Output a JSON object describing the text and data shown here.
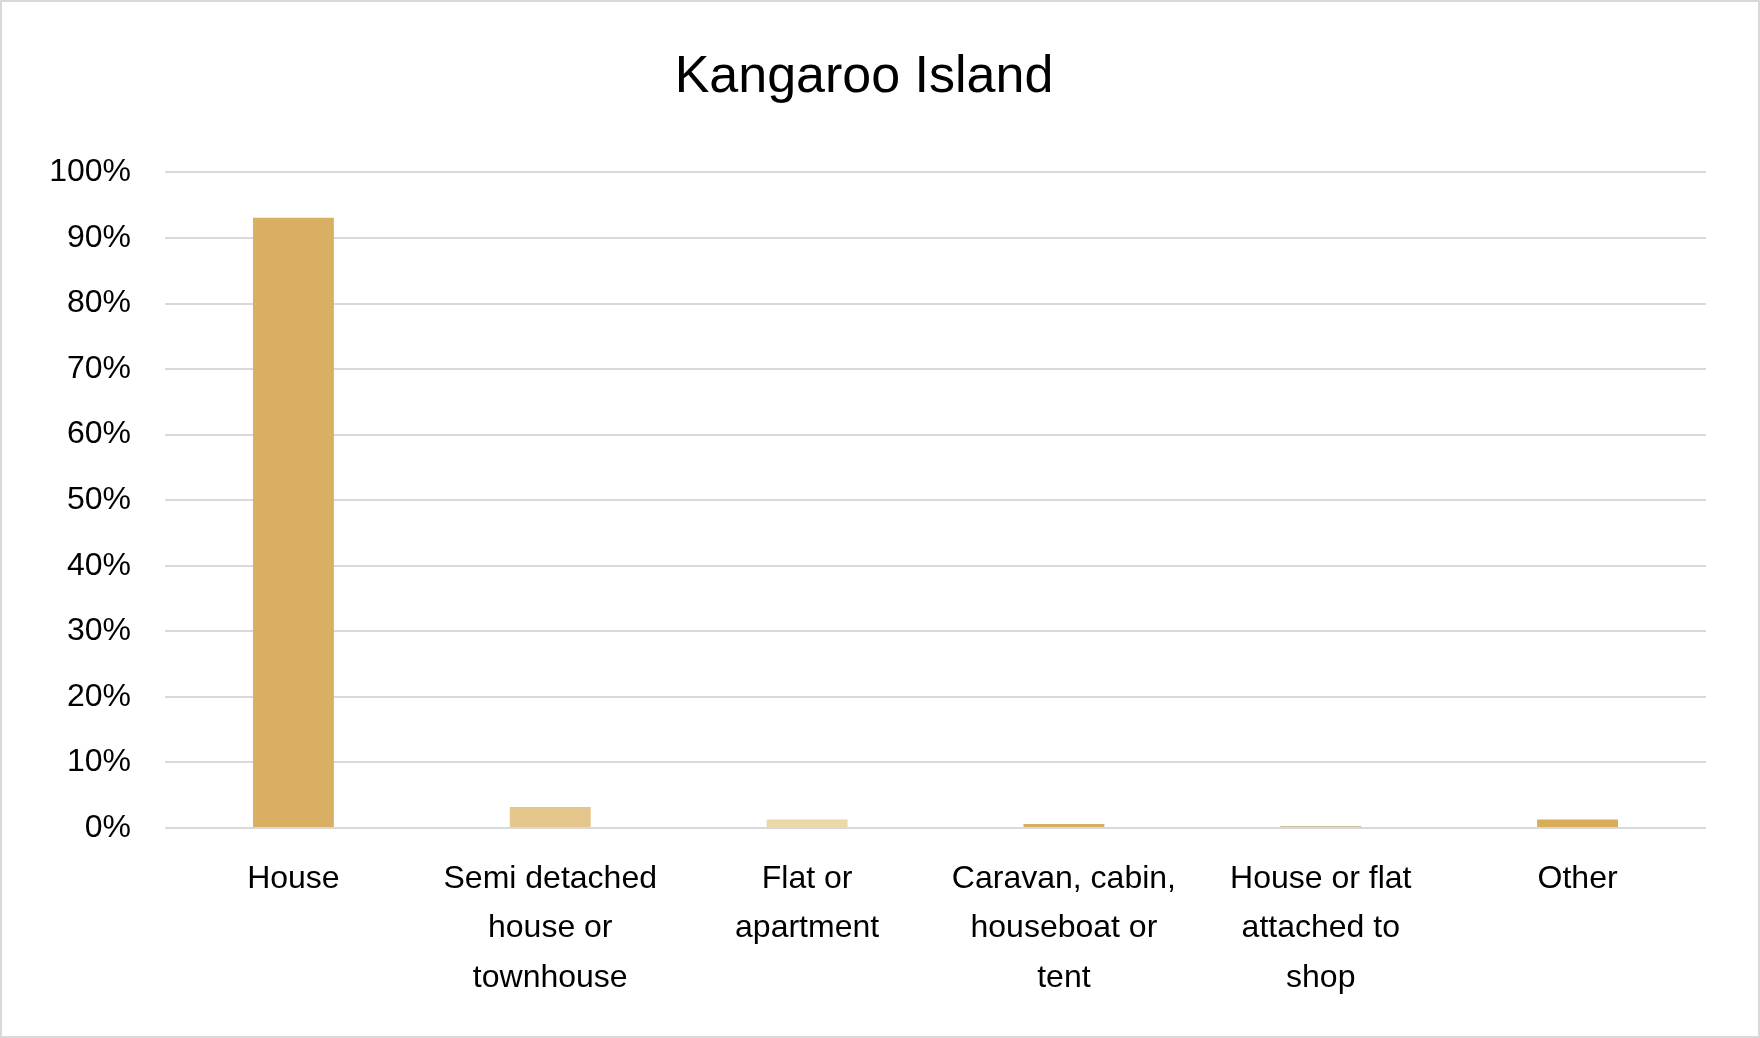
{
  "chart_data": {
    "type": "bar",
    "title": "Kangaroo Island",
    "categories": [
      "House",
      "Semi detached house or townhouse",
      "Flat or apartment",
      "Caravan, cabin, houseboat or tent",
      "House or flat attached to shop",
      "Other"
    ],
    "values": [
      93.1,
      3.2,
      1.3,
      0.6,
      0.3,
      1.3
    ],
    "colors": [
      "#d9b063",
      "#e5c68a",
      "#ecd8a9",
      "#d8ad5f",
      "#cdbf9f",
      "#d9ac5a"
    ],
    "ylim": [
      0,
      100
    ],
    "yticks": [
      {
        "value": 0,
        "label": "0%"
      },
      {
        "value": 10,
        "label": "10%"
      },
      {
        "value": 20,
        "label": "20%"
      },
      {
        "value": 30,
        "label": "30%"
      },
      {
        "value": 40,
        "label": "40%"
      },
      {
        "value": 50,
        "label": "50%"
      },
      {
        "value": 60,
        "label": "60%"
      },
      {
        "value": 70,
        "label": "70%"
      },
      {
        "value": 80,
        "label": "80%"
      },
      {
        "value": 90,
        "label": "90%"
      },
      {
        "value": 100,
        "label": "100%"
      }
    ],
    "grid": "y",
    "legend": false
  }
}
